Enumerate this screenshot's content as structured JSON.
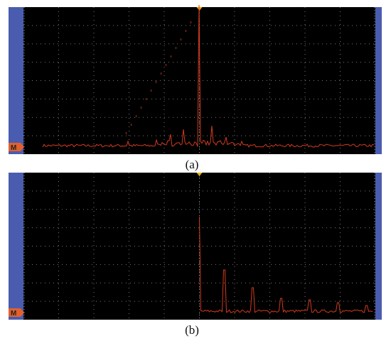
{
  "panels": [
    {
      "caption": "(a)",
      "marker": "M"
    },
    {
      "caption": "(b)",
      "marker": "M"
    }
  ]
}
